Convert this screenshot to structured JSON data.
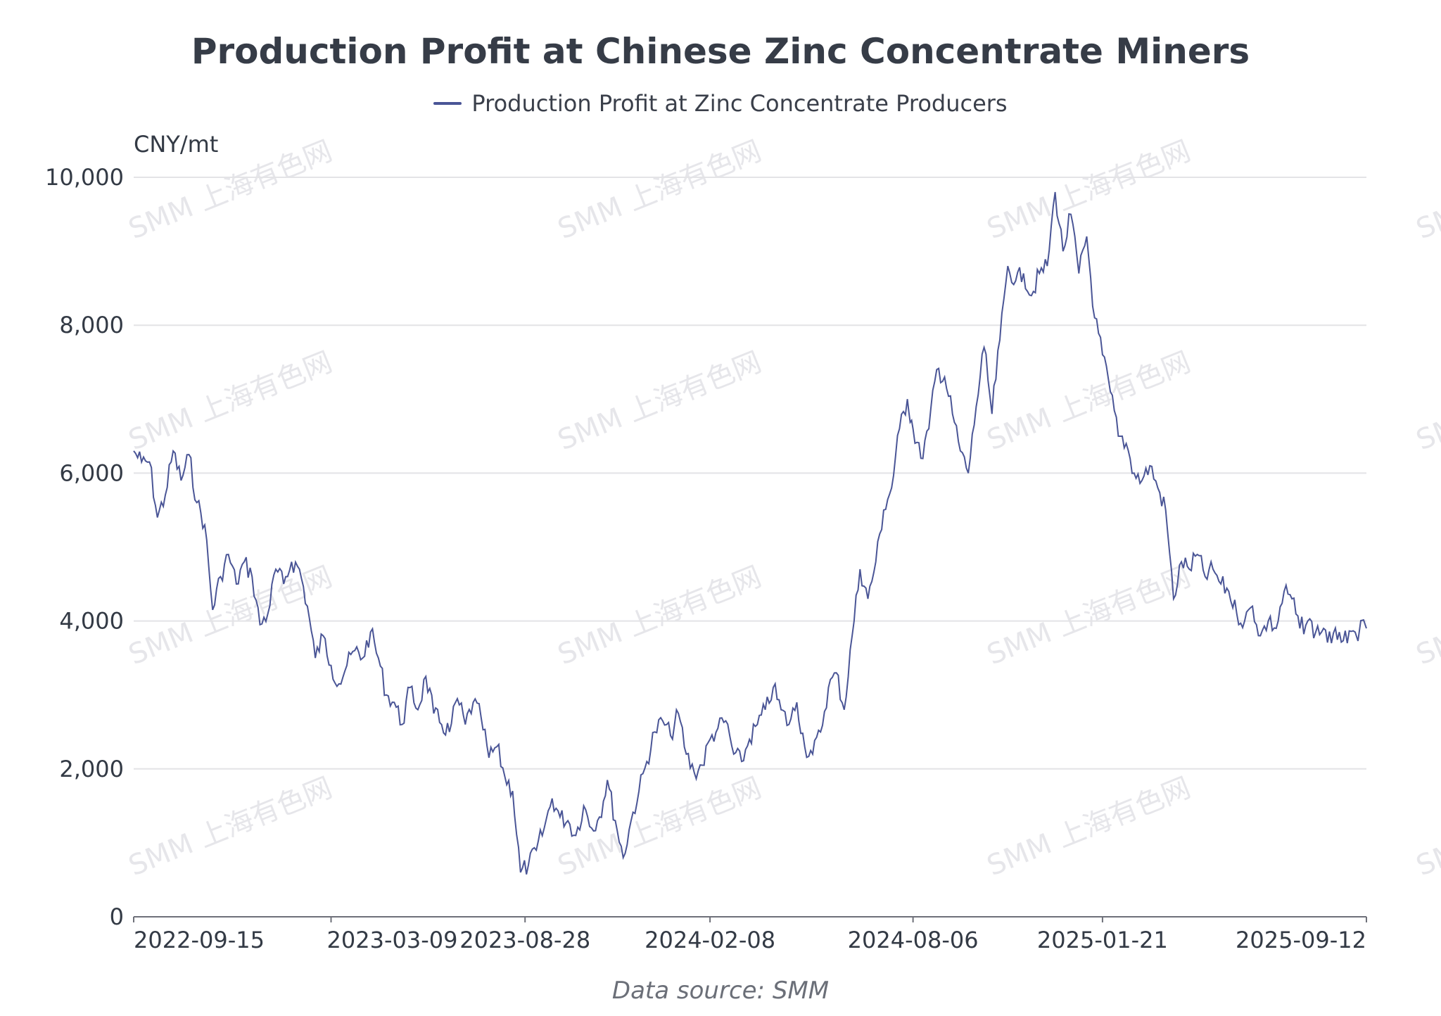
{
  "title": "Production Profit at Chinese Zinc Concentrate Miners",
  "legend": {
    "label": "Production Profit at Zinc Concentrate Producers",
    "color": "#4a5596"
  },
  "unit_label": "CNY/mt",
  "source_label": "Data source:  SMM",
  "watermark_text": "SMM 上海有色网",
  "chart_data": {
    "type": "line",
    "title": "Production Profit at Chinese Zinc Concentrate Miners",
    "ylabel": "CNY/mt",
    "xlabel": "",
    "ylim": [
      0,
      10000
    ],
    "yticks": [
      0,
      2000,
      4000,
      6000,
      8000,
      10000
    ],
    "ytick_labels": [
      "0",
      "2,000",
      "4,000",
      "6,000",
      "8,000",
      "10,000"
    ],
    "xlim": [
      "2022-09-15",
      "2025-09-12"
    ],
    "xtick_labels": [
      "2022-09-15",
      "2023-03-09",
      "2023-08-28",
      "2024-02-08",
      "2024-08-06",
      "2025-01-21",
      "2025-09-12"
    ],
    "grid": true,
    "legend_position": "top-center",
    "series": [
      {
        "name": "Production Profit at Zinc Concentrate Producers",
        "color": "#4a5596",
        "points": [
          [
            "2022-09-15",
            6300
          ],
          [
            "2022-09-22",
            6150
          ],
          [
            "2022-09-29",
            6150
          ],
          [
            "2022-10-06",
            5400
          ],
          [
            "2022-10-13",
            5700
          ],
          [
            "2022-10-20",
            6300
          ],
          [
            "2022-10-27",
            5900
          ],
          [
            "2022-11-03",
            6250
          ],
          [
            "2022-11-10",
            5600
          ],
          [
            "2022-11-17",
            5300
          ],
          [
            "2022-11-24",
            4150
          ],
          [
            "2022-12-01",
            4600
          ],
          [
            "2022-12-08",
            4900
          ],
          [
            "2022-12-15",
            4500
          ],
          [
            "2022-12-22",
            4800
          ],
          [
            "2022-12-29",
            4600
          ],
          [
            "2023-01-05",
            3950
          ],
          [
            "2023-01-12",
            4100
          ],
          [
            "2023-01-19",
            4700
          ],
          [
            "2023-01-26",
            4500
          ],
          [
            "2023-02-02",
            4800
          ],
          [
            "2023-02-09",
            4700
          ],
          [
            "2023-02-16",
            4200
          ],
          [
            "2023-02-23",
            3500
          ],
          [
            "2023-03-02",
            3800
          ],
          [
            "2023-03-09",
            3400
          ],
          [
            "2023-03-16",
            3150
          ],
          [
            "2023-03-23",
            3400
          ],
          [
            "2023-03-30",
            3600
          ],
          [
            "2023-04-06",
            3500
          ],
          [
            "2023-04-13",
            3850
          ],
          [
            "2023-04-20",
            3500
          ],
          [
            "2023-04-27",
            3000
          ],
          [
            "2023-05-04",
            2900
          ],
          [
            "2023-05-11",
            2600
          ],
          [
            "2023-05-18",
            3100
          ],
          [
            "2023-05-25",
            2800
          ],
          [
            "2023-06-01",
            3250
          ],
          [
            "2023-06-08",
            2750
          ],
          [
            "2023-06-15",
            2600
          ],
          [
            "2023-06-22",
            2500
          ],
          [
            "2023-06-29",
            2950
          ],
          [
            "2023-07-06",
            2600
          ],
          [
            "2023-07-13",
            2900
          ],
          [
            "2023-07-20",
            2700
          ],
          [
            "2023-07-27",
            2150
          ],
          [
            "2023-08-03",
            2300
          ],
          [
            "2023-08-10",
            1900
          ],
          [
            "2023-08-17",
            1700
          ],
          [
            "2023-08-24",
            600
          ],
          [
            "2023-08-31",
            700
          ],
          [
            "2023-09-07",
            900
          ],
          [
            "2023-09-14",
            1200
          ],
          [
            "2023-09-21",
            1600
          ],
          [
            "2023-09-28",
            1350
          ],
          [
            "2023-10-05",
            1300
          ],
          [
            "2023-10-12",
            1100
          ],
          [
            "2023-10-19",
            1500
          ],
          [
            "2023-10-26",
            1200
          ],
          [
            "2023-11-02",
            1350
          ],
          [
            "2023-11-09",
            1850
          ],
          [
            "2023-11-16",
            1300
          ],
          [
            "2023-11-23",
            800
          ],
          [
            "2023-11-30",
            1300
          ],
          [
            "2023-12-07",
            1700
          ],
          [
            "2023-12-14",
            2100
          ],
          [
            "2023-12-21",
            2500
          ],
          [
            "2023-12-28",
            2650
          ],
          [
            "2024-01-04",
            2450
          ],
          [
            "2024-01-11",
            2750
          ],
          [
            "2024-01-18",
            2200
          ],
          [
            "2024-01-25",
            1950
          ],
          [
            "2024-02-01",
            2050
          ],
          [
            "2024-02-08",
            2400
          ],
          [
            "2024-02-15",
            2550
          ],
          [
            "2024-02-22",
            2650
          ],
          [
            "2024-02-29",
            2200
          ],
          [
            "2024-03-07",
            2100
          ],
          [
            "2024-03-14",
            2400
          ],
          [
            "2024-03-21",
            2600
          ],
          [
            "2024-03-28",
            2800
          ],
          [
            "2024-04-04",
            3100
          ],
          [
            "2024-04-11",
            2800
          ],
          [
            "2024-04-18",
            2600
          ],
          [
            "2024-04-25",
            2900
          ],
          [
            "2024-05-02",
            2300
          ],
          [
            "2024-05-09",
            2200
          ],
          [
            "2024-05-16",
            2500
          ],
          [
            "2024-05-23",
            3100
          ],
          [
            "2024-05-30",
            3300
          ],
          [
            "2024-06-06",
            2800
          ],
          [
            "2024-06-13",
            3800
          ],
          [
            "2024-06-20",
            4700
          ],
          [
            "2024-06-27",
            4300
          ],
          [
            "2024-07-04",
            4800
          ],
          [
            "2024-07-11",
            5500
          ],
          [
            "2024-07-18",
            5800
          ],
          [
            "2024-07-25",
            6600
          ],
          [
            "2024-08-01",
            7000
          ],
          [
            "2024-08-06",
            6600
          ],
          [
            "2024-08-13",
            6200
          ],
          [
            "2024-08-20",
            6600
          ],
          [
            "2024-08-27",
            7400
          ],
          [
            "2024-09-03",
            7300
          ],
          [
            "2024-09-10",
            6800
          ],
          [
            "2024-09-17",
            6300
          ],
          [
            "2024-09-24",
            6000
          ],
          [
            "2024-10-01",
            6900
          ],
          [
            "2024-10-08",
            7700
          ],
          [
            "2024-10-15",
            6800
          ],
          [
            "2024-10-22",
            7800
          ],
          [
            "2024-10-29",
            8800
          ],
          [
            "2024-11-05",
            8600
          ],
          [
            "2024-11-12",
            8700
          ],
          [
            "2024-11-19",
            8400
          ],
          [
            "2024-11-26",
            8700
          ],
          [
            "2024-12-03",
            8800
          ],
          [
            "2024-12-10",
            9800
          ],
          [
            "2024-12-17",
            9000
          ],
          [
            "2024-12-24",
            9500
          ],
          [
            "2024-12-31",
            8700
          ],
          [
            "2025-01-07",
            9200
          ],
          [
            "2025-01-14",
            8100
          ],
          [
            "2025-01-21",
            7600
          ],
          [
            "2025-01-28",
            7100
          ],
          [
            "2025-02-04",
            6500
          ],
          [
            "2025-02-11",
            6400
          ],
          [
            "2025-02-18",
            6000
          ],
          [
            "2025-02-25",
            5900
          ],
          [
            "2025-03-04",
            6100
          ],
          [
            "2025-03-11",
            5800
          ],
          [
            "2025-03-18",
            5500
          ],
          [
            "2025-03-25",
            4300
          ],
          [
            "2025-04-01",
            4800
          ],
          [
            "2025-04-08",
            4700
          ],
          [
            "2025-04-15",
            4900
          ],
          [
            "2025-04-22",
            4600
          ],
          [
            "2025-04-29",
            4700
          ],
          [
            "2025-05-06",
            4500
          ],
          [
            "2025-05-13",
            4400
          ],
          [
            "2025-05-20",
            4100
          ],
          [
            "2025-05-27",
            4000
          ],
          [
            "2025-06-03",
            4200
          ],
          [
            "2025-06-10",
            3800
          ],
          [
            "2025-06-17",
            4000
          ],
          [
            "2025-06-24",
            3900
          ],
          [
            "2025-07-01",
            4400
          ],
          [
            "2025-07-08",
            4300
          ],
          [
            "2025-07-15",
            3900
          ],
          [
            "2025-07-22",
            4000
          ],
          [
            "2025-07-29",
            3850
          ],
          [
            "2025-08-05",
            3900
          ],
          [
            "2025-08-12",
            3700
          ],
          [
            "2025-08-19",
            3850
          ],
          [
            "2025-08-26",
            3700
          ],
          [
            "2025-09-02",
            3850
          ],
          [
            "2025-09-12",
            3900
          ]
        ]
      }
    ]
  }
}
